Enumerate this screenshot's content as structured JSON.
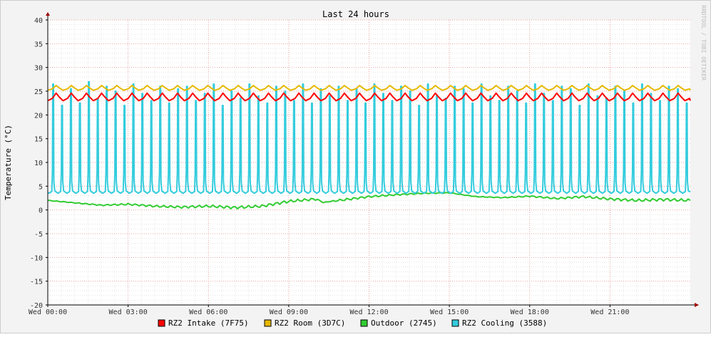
{
  "chart_data": {
    "type": "line",
    "title": "Last 24 hours",
    "ylabel": "Temperature (°C)",
    "watermark": "RRDTOOL / TOBI OETIKER",
    "ylim": [
      -20,
      40
    ],
    "yticks": [
      "40",
      "35",
      "30",
      "25",
      "20",
      "15",
      "10",
      "5",
      "0",
      "-5",
      "-10",
      "-15",
      "-20"
    ],
    "ytick_values": [
      40,
      35,
      30,
      25,
      20,
      15,
      10,
      5,
      0,
      -5,
      -10,
      -15,
      -20
    ],
    "xlim_hours": [
      0,
      24
    ],
    "xticks": [
      "Wed 00:00",
      "Wed 03:00",
      "Wed 06:00",
      "Wed 09:00",
      "Wed 12:00",
      "Wed 15:00",
      "Wed 18:00",
      "Wed 21:00"
    ],
    "xtick_hours": [
      0,
      3,
      6,
      9,
      12,
      15,
      18,
      21
    ],
    "grid": true,
    "legend_position": "bottom",
    "series": [
      {
        "name": "RZ2 Intake (7F75)",
        "color": "#ff0000",
        "baseline": 23.0,
        "peak": 24.6,
        "cycle_minutes": 34
      },
      {
        "name": "RZ2 Room (3D7C)",
        "color": "#e6b800",
        "baseline": 25.2,
        "peak": 26.2,
        "cycle_minutes": 34
      },
      {
        "name": "Outdoor (2745)",
        "color": "#33cc33",
        "x_hours": [
          0,
          1,
          2,
          3,
          4,
          5,
          6,
          7,
          8,
          9,
          10,
          10.3,
          11,
          12,
          13,
          14,
          15,
          16,
          17,
          18,
          19,
          20,
          21,
          22,
          23,
          24
        ],
        "values": [
          2.0,
          1.5,
          1.0,
          1.2,
          0.8,
          0.6,
          0.8,
          0.5,
          0.8,
          1.8,
          2.3,
          1.6,
          2.1,
          2.8,
          3.2,
          3.5,
          3.6,
          2.8,
          2.6,
          2.9,
          2.4,
          2.8,
          2.3,
          2.0,
          2.2,
          2.0
        ]
      },
      {
        "name": "RZ2 Cooling (3588)",
        "color": "#33ccdd",
        "baseline": 3.5,
        "peak_values": [
          26.5,
          22.0,
          25.5,
          22.5,
          27.0,
          23.5,
          26.0,
          25.0,
          22.0,
          26.5,
          24.5,
          23.0,
          26.0,
          22.5,
          25.5,
          26.0,
          23.0,
          24.5,
          26.5,
          22.0,
          25.0,
          23.5,
          26.5,
          24.0,
          22.5,
          26.0,
          25.0,
          23.0,
          26.5,
          22.5,
          25.5,
          24.0,
          26.0,
          23.0,
          25.5,
          22.5,
          26.5,
          24.5,
          23.0,
          26.0,
          25.0,
          22.0,
          26.5,
          24.0,
          23.5,
          26.0,
          25.5,
          22.5,
          26.5,
          24.0,
          23.0,
          26.0,
          25.0,
          22.5,
          26.5,
          24.5,
          23.0,
          26.0,
          25.5,
          22.0,
          26.5,
          24.0,
          23.5,
          26.0,
          25.0,
          22.5,
          26.5,
          24.5,
          23.0,
          26.0,
          25.5,
          22.5
        ],
        "cycle_minutes": 20
      }
    ]
  }
}
